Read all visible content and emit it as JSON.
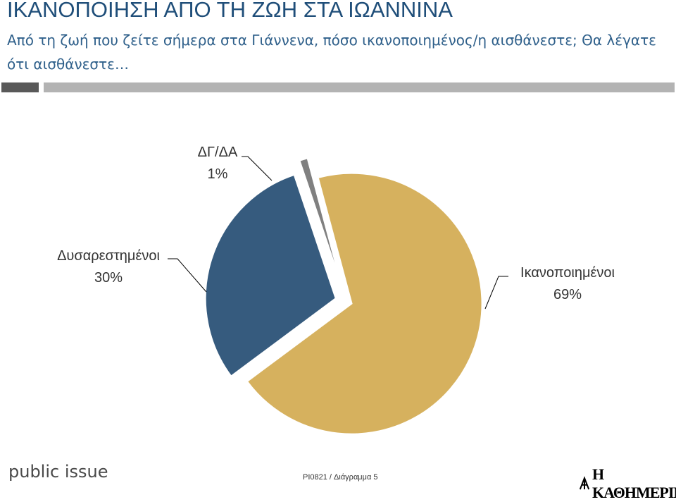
{
  "header": {
    "title": "ΙΚΑΝΟΠΟΙΗΣΗ ΑΠΟ ΤΗ ΖΩΗ ΣΤΑ ΙΩΑΝΝΙΝΑ",
    "subtitle": "Από τη ζωή που ζείτε σήμερα στα Γιάννενα, πόσο ικανοποιημένος/η αισθάνεστε; Θα λέγατε ότι αισθάνεστε…"
  },
  "chart_data": {
    "type": "pie",
    "title": "ΙΚΑΝΟΠΟΙΗΣΗ ΑΠΟ ΤΗ ΖΩΗ ΣΤΑ ΙΩΑΝΝΙΝΑ",
    "unit": "%",
    "slices": [
      {
        "label": "Ικανοποιημένοι",
        "value": 69,
        "value_label": "69%",
        "color": "#d6b15e"
      },
      {
        "label": "Δυσαρεστημένοι",
        "value": 30,
        "value_label": "30%",
        "color": "#365b7e"
      },
      {
        "label": "ΔΓ/ΔΑ",
        "value": 1,
        "value_label": "1%",
        "color": "#808080"
      }
    ],
    "legend": "none",
    "exploded": true
  },
  "footer": {
    "brand": "public issue",
    "code": "PI0821 / Διάγραμμα 5",
    "logo_text": "Η ΚΑΘΗΜΕΡΙΝΗ"
  },
  "colors": {
    "title": "#1f4e79",
    "subtitle": "#2e5f8a",
    "bar_dark": "#595959",
    "bar_light": "#b3b3b3"
  }
}
